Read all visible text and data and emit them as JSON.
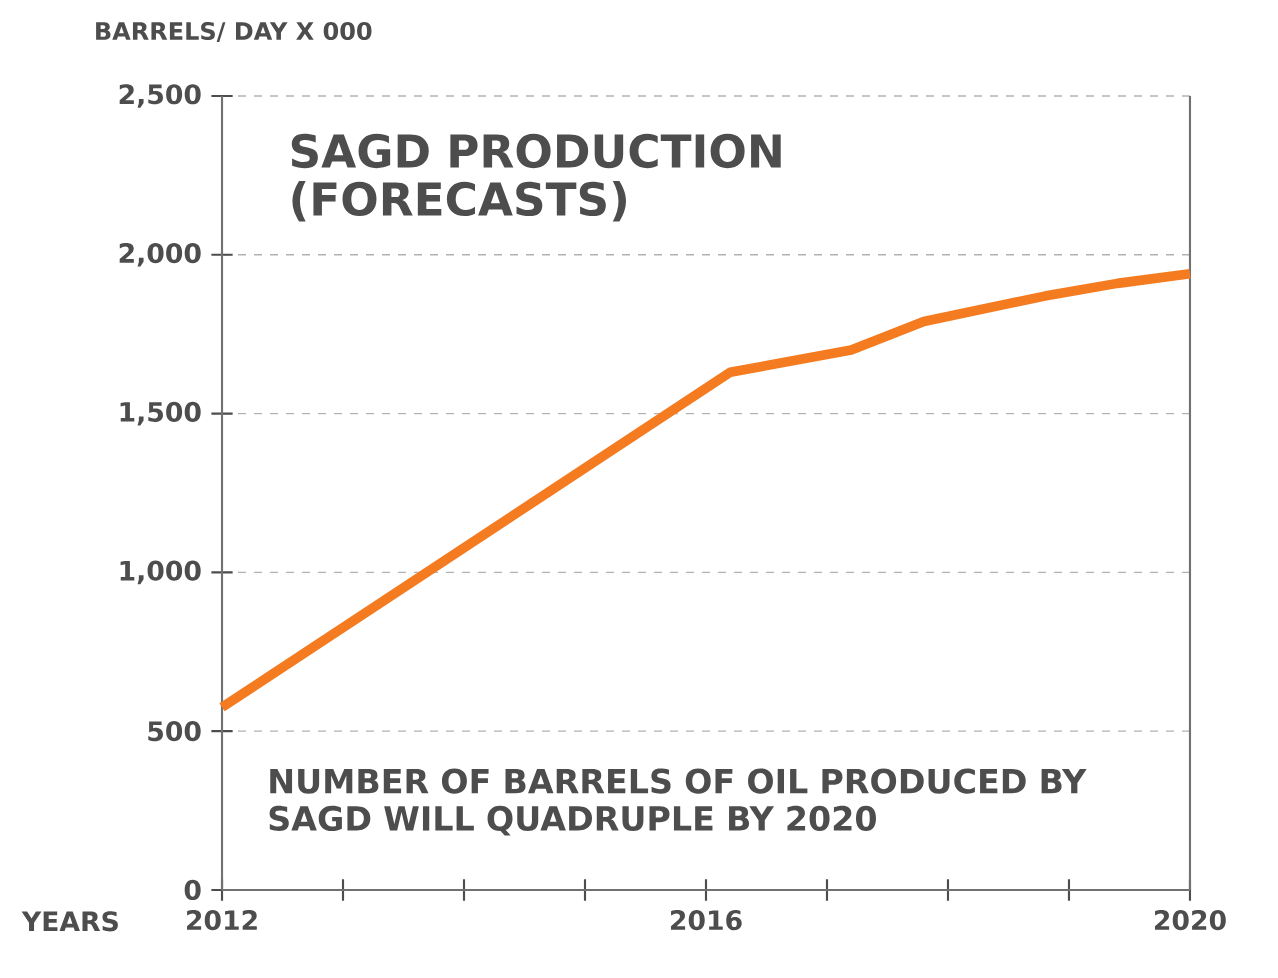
{
  "chart_data": {
    "type": "line",
    "title": "SAGD PRODUCTION (FORECASTS)",
    "ylabel": "BARRELS/ DAY X 000",
    "xlabel": "YEARS",
    "annotations": [
      "NUMBER OF BARRELS OF OIL PRODUCED BY SAGD WILL QUADRUPLE BY 2020"
    ],
    "series": [
      {
        "color": "#f47b20",
        "x": [
          2012,
          2016.2,
          2017.2,
          2017.8,
          2018.8,
          2019.4,
          2020
        ],
        "values": [
          575,
          1630,
          1700,
          1790,
          1870,
          1910,
          1940
        ]
      }
    ],
    "xlim": [
      2012,
      2020
    ],
    "xticks": [
      2012,
      {
        "value": 2013,
        "label": null
      },
      {
        "value": 2014,
        "label": null
      },
      {
        "value": 2015,
        "label": null
      },
      2016,
      {
        "value": 2017,
        "label": null
      },
      {
        "value": 2018,
        "label": null
      },
      {
        "value": 2019,
        "label": null
      },
      2020
    ],
    "ylim": [
      0,
      2500
    ],
    "yticks": [
      0,
      500,
      {
        "value": 1000,
        "label": "1,000"
      },
      {
        "value": 1500,
        "label": "1,500"
      },
      {
        "value": 2000,
        "label": "2,000"
      },
      {
        "value": 2500,
        "label": "2,500"
      }
    ],
    "grid": "y",
    "line_style": "solid"
  }
}
